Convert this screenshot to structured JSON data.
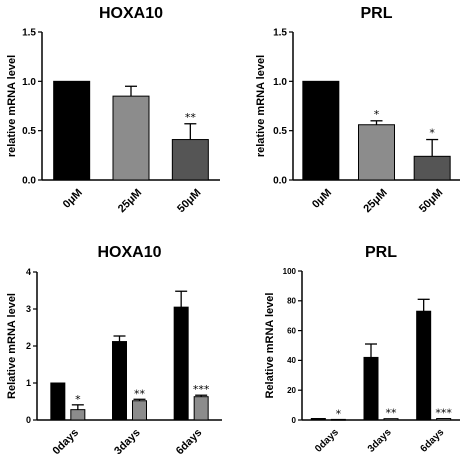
{
  "chart_data": [
    {
      "type": "bar",
      "title": "HOXA10",
      "ylabel": "relative mRNA level",
      "categories": [
        "0μM",
        "25μM",
        "50μM"
      ],
      "values": [
        1.0,
        0.85,
        0.41
      ],
      "errors": [
        0,
        0.1,
        0.16
      ],
      "significance": [
        "",
        "",
        "**"
      ],
      "colors": [
        "#000000",
        "#8c8c8c",
        "#555555"
      ],
      "ylim": [
        0,
        1.5
      ],
      "yticks": [
        "0.0",
        "0.5",
        "1.0",
        "1.5"
      ]
    },
    {
      "type": "bar",
      "title": "PRL",
      "ylabel": "relative mRNA level",
      "categories": [
        "0μM",
        "25μM",
        "50μM"
      ],
      "values": [
        1.0,
        0.56,
        0.24
      ],
      "errors": [
        0,
        0.04,
        0.17
      ],
      "significance": [
        "",
        "*",
        "*"
      ],
      "colors": [
        "#000000",
        "#8c8c8c",
        "#555555"
      ],
      "ylim": [
        0,
        1.5
      ],
      "yticks": [
        "0.0",
        "0.5",
        "1.0",
        "1.5"
      ]
    },
    {
      "type": "bar",
      "title": "HOXA10",
      "ylabel": "Relative mRNA level",
      "categories": [
        "0days",
        "3days",
        "6days"
      ],
      "series": [
        {
          "values": [
            1.0,
            2.12,
            3.05
          ],
          "errors": [
            0,
            0.15,
            0.43
          ],
          "color": "#000000"
        },
        {
          "values": [
            0.28,
            0.52,
            0.63
          ],
          "errors": [
            0.13,
            0.04,
            0.04
          ],
          "color": "#8c8c8c"
        }
      ],
      "significance": [
        "*",
        "**",
        "***"
      ],
      "ylim": [
        0,
        4
      ],
      "yticks": [
        "0",
        "1",
        "2",
        "3",
        "4"
      ]
    },
    {
      "type": "bar",
      "title": "PRL",
      "ylabel": "Relative mRNA level",
      "categories": [
        "0days",
        "3days",
        "6days"
      ],
      "series": [
        {
          "values": [
            1.0,
            42,
            73
          ],
          "errors": [
            0,
            9,
            8
          ],
          "color": "#000000"
        },
        {
          "values": [
            0.4,
            0.9,
            1.0
          ],
          "errors": [
            0,
            0,
            0
          ],
          "color": "#8c8c8c"
        }
      ],
      "significance": [
        "*",
        "**",
        "***"
      ],
      "ylim": [
        0,
        100
      ],
      "yticks": [
        "0",
        "20",
        "40",
        "60",
        "80",
        "100"
      ]
    }
  ]
}
